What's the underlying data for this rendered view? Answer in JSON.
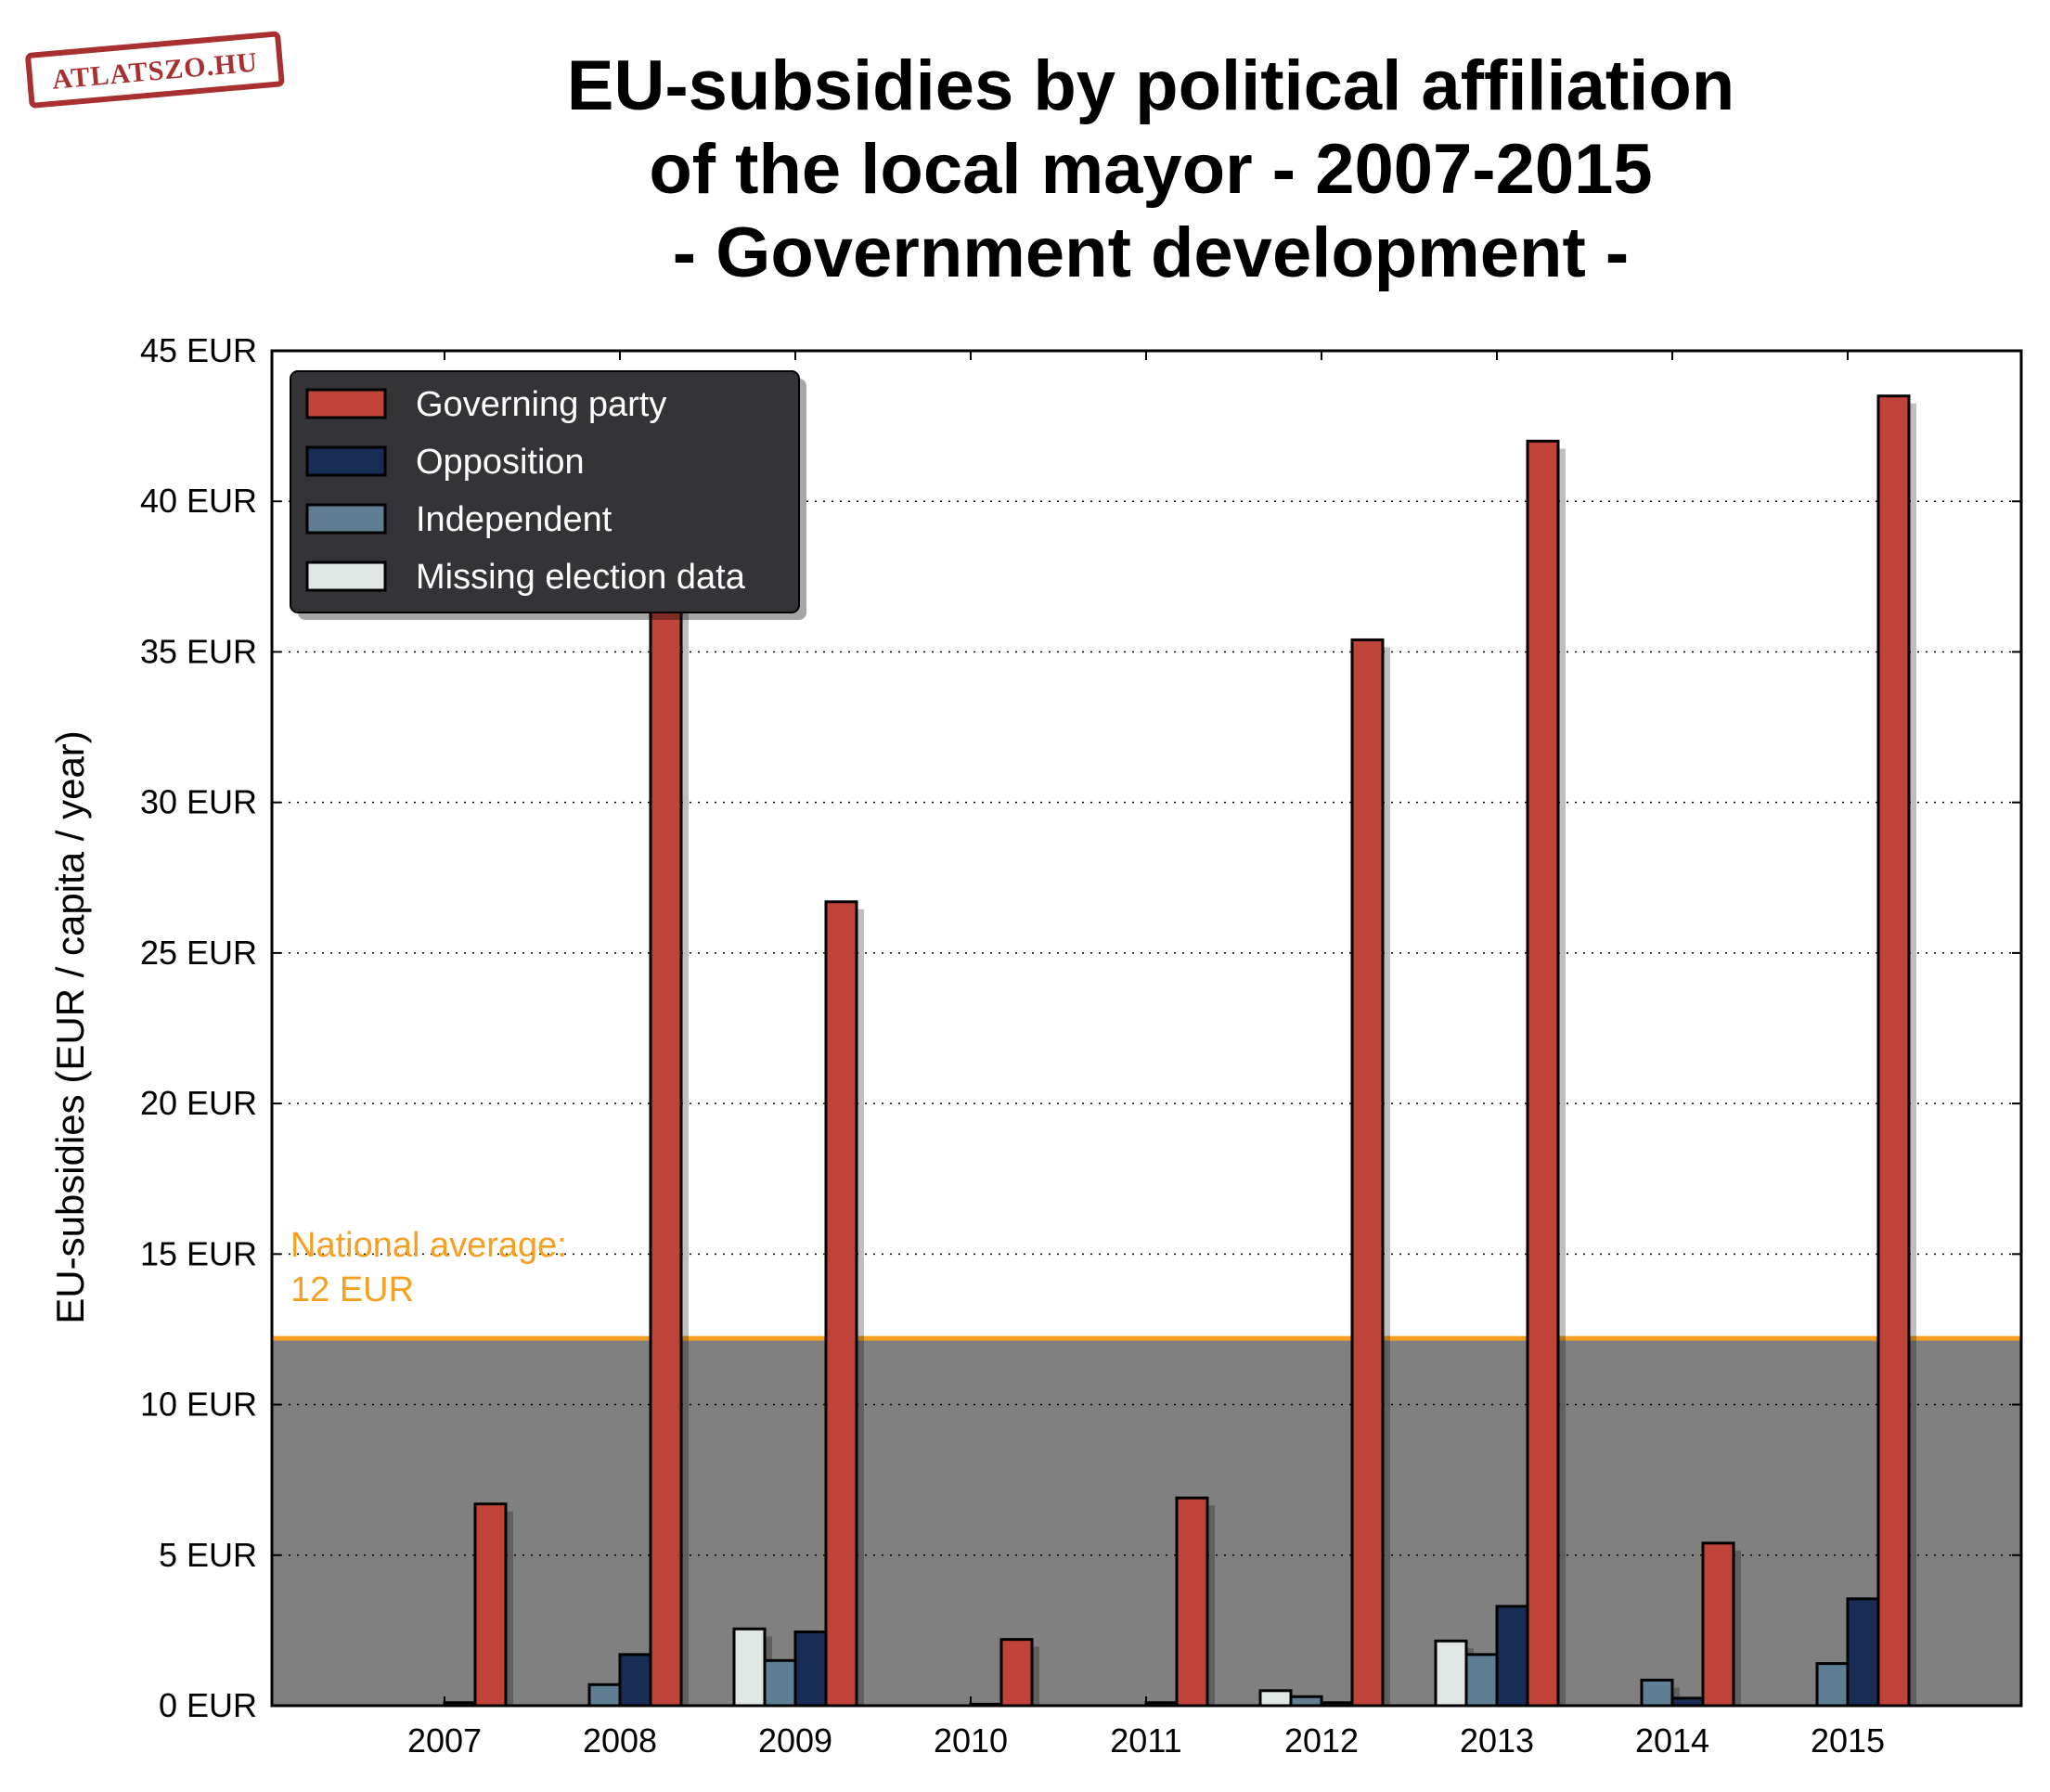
{
  "logo": {
    "text": "ATLATSZO.HU",
    "color": "#a83030"
  },
  "chart_data": {
    "type": "bar",
    "title_lines": [
      "EU-subsidies by political affiliation",
      "of the local mayor - 2007-2015",
      "- Government development -"
    ],
    "xlabel": "",
    "ylabel": "EU-subsidies (EUR / capita / year)",
    "ylim": [
      0,
      45
    ],
    "yticks": [
      0,
      5,
      10,
      15,
      20,
      25,
      30,
      35,
      40,
      45
    ],
    "ytick_labels": [
      "0 EUR",
      "5 EUR",
      "10 EUR",
      "15 EUR",
      "20 EUR",
      "25 EUR",
      "30 EUR",
      "35 EUR",
      "40 EUR",
      "45 EUR"
    ],
    "grid": "horizontal dotted",
    "legend_position": "top-left",
    "categories": [
      "2007",
      "2008",
      "2009",
      "2010",
      "2011",
      "2012",
      "2013",
      "2014",
      "2015"
    ],
    "series": [
      {
        "name": "Missing election data",
        "color": "#e0e6e3",
        "values": [
          0,
          0,
          2.55,
          0,
          0,
          0.5,
          2.15,
          0,
          0
        ]
      },
      {
        "name": "Independent",
        "color": "#5d7e93",
        "values": [
          0,
          0.7,
          1.5,
          0,
          0,
          0.3,
          1.7,
          0.85,
          1.4
        ]
      },
      {
        "name": "Opposition",
        "color": "#172d55",
        "values": [
          0.1,
          1.7,
          2.45,
          0.05,
          0.1,
          0.1,
          3.3,
          0.25,
          3.55
        ]
      },
      {
        "name": "Governing party",
        "color": "#c0433a",
        "values": [
          6.7,
          37.0,
          26.7,
          2.2,
          6.9,
          35.4,
          42.0,
          5.4,
          43.5
        ]
      }
    ],
    "legend_order": [
      "Governing party",
      "Opposition",
      "Independent",
      "Missing election data"
    ],
    "reference_line": {
      "value": 12.2,
      "color": "#f5a020",
      "label_lines": [
        "National average:",
        "12 EUR"
      ]
    },
    "below_reference_fill": "#808080"
  }
}
